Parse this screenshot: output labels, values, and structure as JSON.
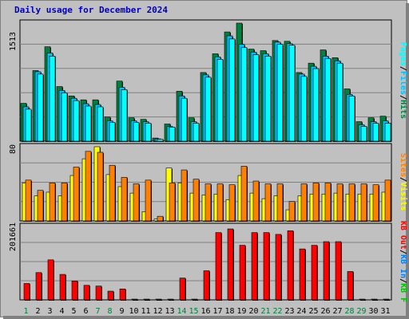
{
  "title": "Daily usage for December 2024",
  "colors": {
    "hits": "#008040",
    "files": "#00c0ff",
    "pages": "#00ffff",
    "visits": "#ffff00",
    "sites": "#ff8000",
    "kbin": "#0080ff",
    "kbout": "#00c000",
    "kbf": "#ff0000"
  },
  "chart_data": [
    {
      "type": "bar",
      "name_panel": "hits-files-pages",
      "y_max_label": "1513",
      "legend": [
        "Hits",
        "/",
        "Files",
        "/",
        "Pages"
      ],
      "ylim": [
        0,
        1513
      ],
      "x": [
        "1",
        "2",
        "3",
        "4",
        "5",
        "6",
        "7",
        "8",
        "9",
        "10",
        "11",
        "12",
        "13",
        "14",
        "15",
        "16",
        "17",
        "18",
        "19",
        "20",
        "21",
        "22",
        "23",
        "24",
        "25",
        "26",
        "27",
        "28",
        "29",
        "30",
        "31"
      ],
      "weekend_days": [
        "1",
        "7",
        "8",
        "14",
        "15",
        "21",
        "22",
        "28",
        "29"
      ],
      "series": [
        {
          "name": "Hits",
          "values": [
            485,
            905,
            1210,
            700,
            580,
            530,
            530,
            310,
            770,
            300,
            280,
            40,
            220,
            640,
            300,
            880,
            1120,
            1400,
            1513,
            1180,
            1160,
            1290,
            1280,
            880,
            1000,
            1170,
            1070,
            670,
            250,
            300,
            320
          ]
        },
        {
          "name": "Files",
          "values": [
            440,
            890,
            1130,
            650,
            550,
            480,
            470,
            260,
            690,
            260,
            250,
            30,
            190,
            580,
            250,
            850,
            1080,
            1350,
            1240,
            1140,
            1120,
            1270,
            1250,
            860,
            960,
            1090,
            1030,
            600,
            210,
            250,
            260
          ]
        },
        {
          "name": "Pages",
          "values": [
            410,
            860,
            1090,
            620,
            520,
            450,
            440,
            240,
            660,
            240,
            230,
            25,
            180,
            550,
            230,
            820,
            1050,
            1310,
            1200,
            1110,
            1090,
            1240,
            1230,
            830,
            930,
            1060,
            1000,
            580,
            190,
            230,
            230
          ]
        }
      ]
    },
    {
      "type": "bar",
      "name_panel": "visits-sites",
      "y_max_label": "80",
      "legend": [
        "Visits",
        "/",
        "Sites"
      ],
      "ylim": [
        0,
        80
      ],
      "series": [
        {
          "name": "Visits",
          "values": [
            41,
            27,
            31,
            27,
            49,
            67,
            80,
            50,
            37,
            30,
            10,
            2,
            57,
            41,
            30,
            28,
            29,
            23,
            49,
            30,
            24,
            27,
            12,
            27,
            29,
            29,
            30,
            29,
            29,
            29,
            31
          ]
        },
        {
          "name": "Sites",
          "values": [
            44,
            33,
            41,
            41,
            58,
            75,
            74,
            60,
            47,
            40,
            44,
            5,
            41,
            55,
            45,
            40,
            40,
            39,
            59,
            43,
            40,
            40,
            21,
            40,
            41,
            41,
            40,
            40,
            40,
            39,
            44
          ]
        }
      ]
    },
    {
      "type": "bar",
      "name_panel": "kbf",
      "y_max_label": "201661",
      "legend": [
        "KB F",
        "/",
        "KB In",
        "/",
        "KB Out"
      ],
      "ylim": [
        0,
        201661
      ],
      "series": [
        {
          "name": "KB F",
          "values": [
            45000,
            75000,
            110000,
            70000,
            52000,
            40000,
            38000,
            24000,
            30000,
            1500,
            1500,
            1500,
            1500,
            60000,
            1500,
            80000,
            185000,
            195000,
            150000,
            185000,
            185000,
            180000,
            190000,
            140000,
            150000,
            160000,
            160000,
            78000,
            1500,
            1500,
            1500
          ]
        }
      ]
    }
  ]
}
